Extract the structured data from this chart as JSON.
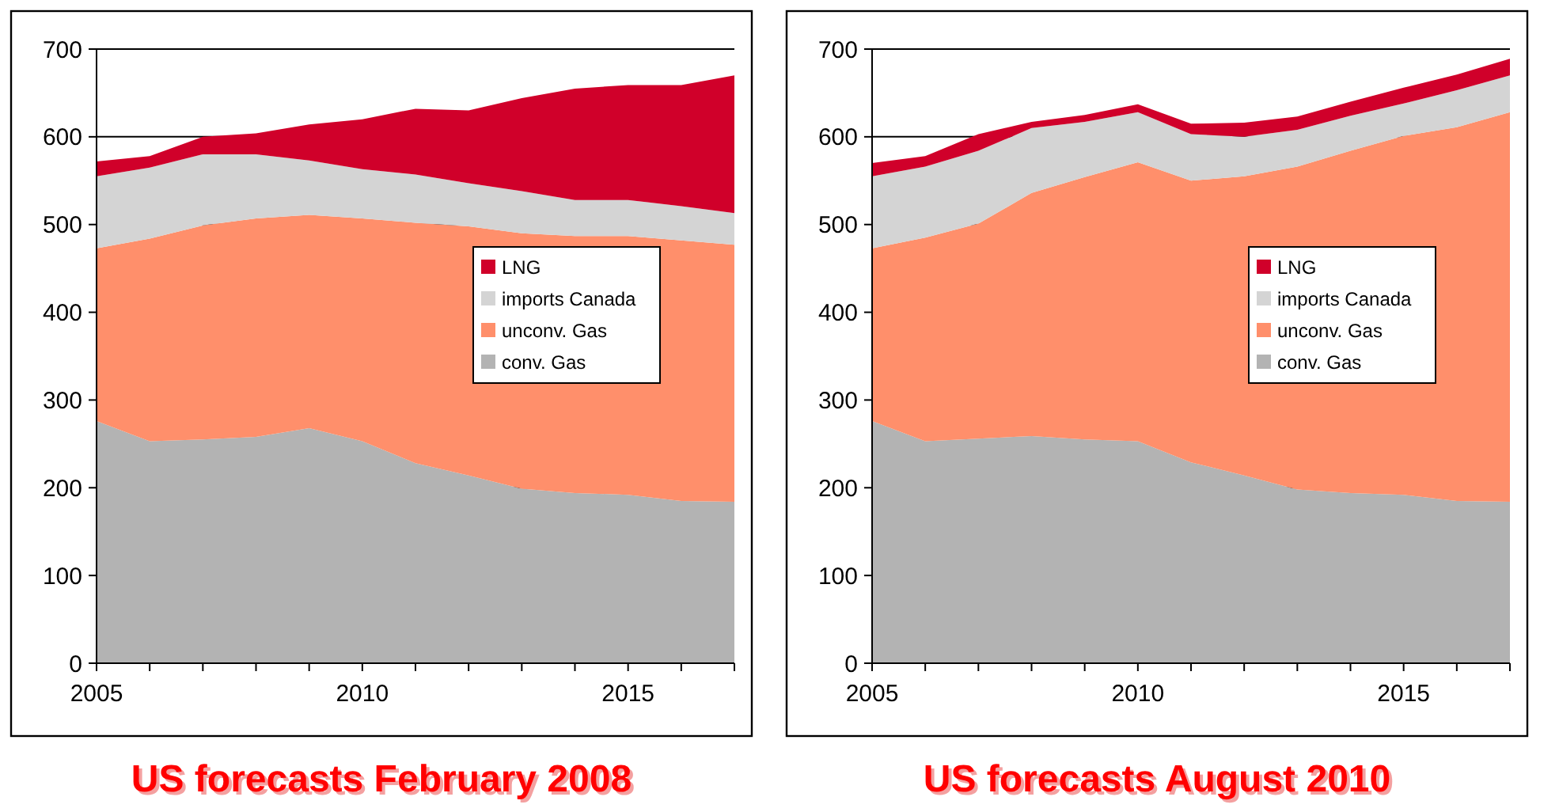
{
  "chart_data": [
    {
      "type": "area",
      "stacked": true,
      "title": "US forecasts February 2008",
      "x": [
        2005,
        2006,
        2007,
        2008,
        2009,
        2010,
        2011,
        2012,
        2013,
        2014,
        2015,
        2016,
        2017
      ],
      "xlim": [
        2005,
        2017
      ],
      "xticks": [
        2005,
        2010,
        2015
      ],
      "ylim": [
        0,
        700
      ],
      "yticks": [
        0,
        100,
        200,
        300,
        400,
        500,
        600,
        700
      ],
      "grid": "y",
      "legend": "right",
      "series": [
        {
          "name": "conv. Gas",
          "color": "#b3b3b3",
          "values": [
            276,
            253,
            255,
            258,
            268,
            253,
            228,
            214,
            199,
            194,
            192,
            185,
            184
          ]
        },
        {
          "name": "unconv. Gas",
          "color": "#ff8f6b",
          "values": [
            197,
            231,
            244,
            249,
            243,
            254,
            274,
            284,
            291,
            293,
            295,
            297,
            293
          ]
        },
        {
          "name": "imports Canada",
          "color": "#d4d4d4",
          "values": [
            82,
            81,
            81,
            73,
            62,
            56,
            55,
            49,
            48,
            41,
            41,
            39,
            36
          ]
        },
        {
          "name": "LNG",
          "color": "#d0002a",
          "values": [
            17,
            13,
            20,
            24,
            41,
            57,
            75,
            83,
            106,
            127,
            131,
            138,
            157
          ]
        }
      ]
    },
    {
      "type": "area",
      "stacked": true,
      "title": "US forecasts August 2010",
      "x": [
        2005,
        2006,
        2007,
        2008,
        2009,
        2010,
        2011,
        2012,
        2013,
        2014,
        2015,
        2016,
        2017
      ],
      "xlim": [
        2005,
        2017
      ],
      "xticks": [
        2005,
        2010,
        2015
      ],
      "ylim": [
        0,
        700
      ],
      "yticks": [
        0,
        100,
        200,
        300,
        400,
        500,
        600,
        700
      ],
      "grid": "y",
      "legend": "right",
      "series": [
        {
          "name": "conv. Gas",
          "color": "#b3b3b3",
          "values": [
            276,
            253,
            256,
            259,
            255,
            253,
            229,
            214,
            198,
            194,
            192,
            185,
            184
          ]
        },
        {
          "name": "unconv. Gas",
          "color": "#ff8f6b",
          "values": [
            197,
            232,
            245,
            277,
            299,
            318,
            321,
            341,
            368,
            390,
            409,
            426,
            444
          ]
        },
        {
          "name": "imports Canada",
          "color": "#d4d4d4",
          "values": [
            82,
            81,
            83,
            74,
            63,
            57,
            53,
            45,
            42,
            40,
            37,
            42,
            42
          ]
        },
        {
          "name": "LNG",
          "color": "#d0002a",
          "values": [
            15,
            12,
            19,
            7,
            8,
            9,
            12,
            16,
            15,
            16,
            18,
            18,
            19
          ]
        }
      ]
    }
  ]
}
